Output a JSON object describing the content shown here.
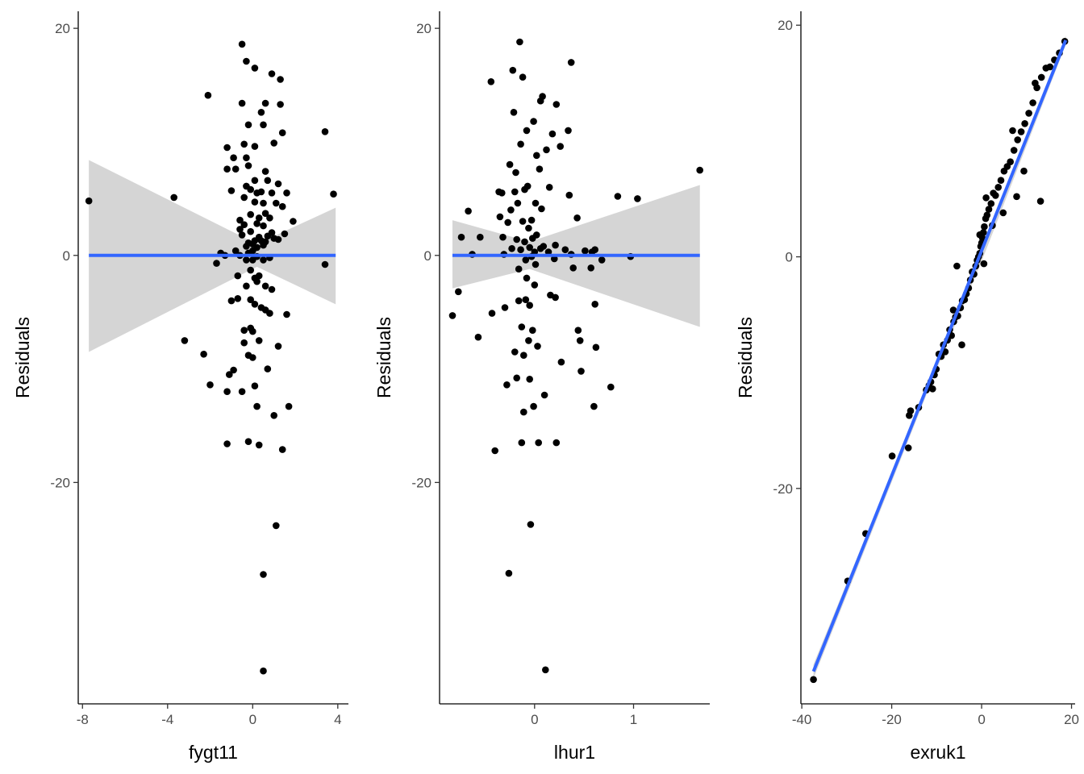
{
  "colors": {
    "point": "#000000",
    "fit_line": "#3366FF",
    "ci_band": "#D3D3D3"
  },
  "chart_data": [
    {
      "type": "scatter",
      "xlabel": "fygt11",
      "ylabel": "Residuals",
      "xlim": [
        -8.2,
        4.5
      ],
      "ylim": [
        -39.5,
        21.5
      ],
      "xticks": [
        -8,
        -4,
        0,
        4
      ],
      "xtick_labels": [
        "-8",
        "-4",
        "0",
        "4"
      ],
      "yticks": [
        -20,
        0,
        20
      ],
      "ytick_labels": [
        "-20",
        "0",
        "20"
      ],
      "grid": false,
      "fit": {
        "x": [
          -7.7,
          3.9
        ],
        "y": [
          0,
          0
        ]
      },
      "ci": {
        "x": [
          -7.7,
          0.2,
          3.9
        ],
        "upper": [
          8.4,
          1.0,
          4.2
        ],
        "lower": [
          -8.5,
          -1.0,
          -4.3
        ]
      },
      "points": [
        [
          -7.7,
          4.8
        ],
        [
          -3.7,
          5.1
        ],
        [
          -3.2,
          -7.5
        ],
        [
          -2.3,
          -8.7
        ],
        [
          -2.1,
          14.1
        ],
        [
          -2.0,
          -11.4
        ],
        [
          -1.7,
          -0.7
        ],
        [
          -1.5,
          0.2
        ],
        [
          -1.3,
          0.0
        ],
        [
          -1.2,
          9.5
        ],
        [
          -1.2,
          7.6
        ],
        [
          -1.2,
          -12.0
        ],
        [
          -1.2,
          -16.6
        ],
        [
          -1.1,
          -10.5
        ],
        [
          -1.0,
          -4.0
        ],
        [
          -1.0,
          5.7
        ],
        [
          -0.9,
          8.6
        ],
        [
          -0.9,
          -10.1
        ],
        [
          -0.8,
          0.4
        ],
        [
          -0.8,
          7.6
        ],
        [
          -0.7,
          -3.8
        ],
        [
          -0.7,
          -1.8
        ],
        [
          -0.6,
          3.1
        ],
        [
          -0.6,
          2.3
        ],
        [
          -0.6,
          0.0
        ],
        [
          -0.5,
          1.8
        ],
        [
          -0.5,
          -12.0
        ],
        [
          -0.5,
          18.6
        ],
        [
          -0.5,
          13.4
        ],
        [
          -0.4,
          9.8
        ],
        [
          -0.4,
          5.1
        ],
        [
          -0.4,
          2.7
        ],
        [
          -0.4,
          -6.6
        ],
        [
          -0.4,
          -7.7
        ],
        [
          -0.3,
          17.1
        ],
        [
          -0.3,
          8.6
        ],
        [
          -0.3,
          6.1
        ],
        [
          -0.3,
          0.8
        ],
        [
          -0.3,
          -0.4
        ],
        [
          -0.3,
          -2.7
        ],
        [
          -0.2,
          11.5
        ],
        [
          -0.2,
          7.9
        ],
        [
          -0.2,
          1.1
        ],
        [
          -0.2,
          0.2
        ],
        [
          -0.2,
          -8.8
        ],
        [
          -0.2,
          -16.4
        ],
        [
          -0.1,
          5.8
        ],
        [
          -0.1,
          3.6
        ],
        [
          -0.1,
          2.1
        ],
        [
          -0.1,
          -1.3
        ],
        [
          -0.1,
          -3.9
        ],
        [
          -0.1,
          -6.4
        ],
        [
          0.0,
          1.0
        ],
        [
          0.0,
          0.4
        ],
        [
          0.0,
          -0.4
        ],
        [
          0.0,
          -6.7
        ],
        [
          0.0,
          -9.0
        ],
        [
          0.1,
          16.5
        ],
        [
          0.1,
          9.6
        ],
        [
          0.1,
          6.6
        ],
        [
          0.1,
          4.7
        ],
        [
          0.1,
          1.3
        ],
        [
          0.1,
          -2.0
        ],
        [
          0.1,
          -4.3
        ],
        [
          0.1,
          -11.5
        ],
        [
          0.2,
          5.5
        ],
        [
          0.2,
          2.8
        ],
        [
          0.2,
          0.7
        ],
        [
          0.2,
          -0.1
        ],
        [
          0.2,
          -2.3
        ],
        [
          0.2,
          -13.3
        ],
        [
          0.3,
          3.3
        ],
        [
          0.3,
          1.6
        ],
        [
          0.3,
          -1.8
        ],
        [
          0.3,
          -7.5
        ],
        [
          0.3,
          -16.7
        ],
        [
          0.4,
          12.6
        ],
        [
          0.4,
          5.6
        ],
        [
          0.4,
          1.3
        ],
        [
          0.4,
          -4.6
        ],
        [
          0.5,
          11.5
        ],
        [
          0.5,
          4.6
        ],
        [
          0.5,
          2.6
        ],
        [
          0.5,
          0.9
        ],
        [
          0.5,
          -0.4
        ],
        [
          0.5,
          -28.1
        ],
        [
          0.5,
          -36.6
        ],
        [
          0.6,
          13.4
        ],
        [
          0.6,
          7.4
        ],
        [
          0.6,
          3.7
        ],
        [
          0.6,
          1.2
        ],
        [
          0.6,
          -2.7
        ],
        [
          0.6,
          -4.8
        ],
        [
          0.7,
          6.6
        ],
        [
          0.7,
          1.7
        ],
        [
          0.7,
          -10.0
        ],
        [
          0.8,
          3.3
        ],
        [
          0.8,
          -0.2
        ],
        [
          0.8,
          -5.1
        ],
        [
          0.9,
          16.0
        ],
        [
          0.9,
          5.5
        ],
        [
          0.9,
          2.0
        ],
        [
          0.9,
          -3.0
        ],
        [
          1.0,
          9.9
        ],
        [
          1.0,
          1.5
        ],
        [
          1.0,
          -14.1
        ],
        [
          1.1,
          4.6
        ],
        [
          1.1,
          -23.8
        ],
        [
          1.2,
          6.3
        ],
        [
          1.2,
          1.4
        ],
        [
          1.2,
          -8.0
        ],
        [
          1.3,
          15.5
        ],
        [
          1.3,
          13.3
        ],
        [
          1.4,
          10.8
        ],
        [
          1.4,
          4.3
        ],
        [
          1.4,
          -17.1
        ],
        [
          1.5,
          1.9
        ],
        [
          1.6,
          -5.2
        ],
        [
          1.6,
          5.5
        ],
        [
          1.7,
          -13.3
        ],
        [
          1.9,
          3.0
        ],
        [
          3.4,
          10.9
        ],
        [
          3.4,
          -0.8
        ],
        [
          3.8,
          5.4
        ]
      ]
    },
    {
      "type": "scatter",
      "xlabel": "lhur1",
      "ylabel": "Residuals",
      "xlim": [
        -0.96,
        1.77
      ],
      "ylim": [
        -39.5,
        21.5
      ],
      "xticks": [
        0,
        1
      ],
      "xtick_labels": [
        "0",
        "1"
      ],
      "yticks": [
        -20,
        0,
        20
      ],
      "ytick_labels": [
        "-20",
        "0",
        "20"
      ],
      "grid": false,
      "fit": {
        "x": [
          -0.83,
          1.67
        ],
        "y": [
          0,
          0
        ]
      },
      "ci": {
        "x": [
          -0.83,
          -0.05,
          1.67
        ],
        "upper": [
          3.1,
          1.2,
          6.2
        ],
        "lower": [
          -2.9,
          -1.2,
          -6.3
        ]
      },
      "points": [
        [
          -0.83,
          -5.3
        ],
        [
          -0.77,
          -3.2
        ],
        [
          -0.74,
          1.6
        ],
        [
          -0.67,
          3.9
        ],
        [
          -0.63,
          0.1
        ],
        [
          -0.57,
          -7.2
        ],
        [
          -0.55,
          1.6
        ],
        [
          -0.44,
          15.3
        ],
        [
          -0.43,
          -5.1
        ],
        [
          -0.4,
          -17.2
        ],
        [
          -0.36,
          5.6
        ],
        [
          -0.35,
          3.4
        ],
        [
          -0.33,
          5.5
        ],
        [
          -0.32,
          1.6
        ],
        [
          -0.31,
          0.1
        ],
        [
          -0.3,
          -4.6
        ],
        [
          -0.28,
          -11.4
        ],
        [
          -0.27,
          2.9
        ],
        [
          -0.26,
          -28.0
        ],
        [
          -0.25,
          8.0
        ],
        [
          -0.24,
          4.0
        ],
        [
          -0.23,
          0.6
        ],
        [
          -0.22,
          16.3
        ],
        [
          -0.21,
          12.6
        ],
        [
          -0.2,
          5.6
        ],
        [
          -0.2,
          -8.5
        ],
        [
          -0.19,
          7.3
        ],
        [
          -0.18,
          1.4
        ],
        [
          -0.18,
          -10.8
        ],
        [
          -0.17,
          4.6
        ],
        [
          -0.16,
          -1.2
        ],
        [
          -0.16,
          -4.0
        ],
        [
          -0.15,
          18.8
        ],
        [
          -0.14,
          9.8
        ],
        [
          -0.14,
          0.5
        ],
        [
          -0.13,
          -6.3
        ],
        [
          -0.13,
          -16.5
        ],
        [
          -0.12,
          15.7
        ],
        [
          -0.12,
          3.0
        ],
        [
          -0.11,
          -8.8
        ],
        [
          -0.11,
          -13.8
        ],
        [
          -0.1,
          5.8
        ],
        [
          -0.1,
          1.2
        ],
        [
          -0.09,
          -0.4
        ],
        [
          -0.09,
          -3.9
        ],
        [
          -0.08,
          11.0
        ],
        [
          -0.08,
          -2.0
        ],
        [
          -0.07,
          6.1
        ],
        [
          -0.06,
          2.4
        ],
        [
          -0.06,
          -7.5
        ],
        [
          -0.05,
          0.7
        ],
        [
          -0.05,
          -4.4
        ],
        [
          -0.05,
          -10.9
        ],
        [
          -0.04,
          -23.7
        ],
        [
          -0.03,
          3.1
        ],
        [
          -0.03,
          -0.1
        ],
        [
          -0.02,
          1.5
        ],
        [
          -0.02,
          -6.6
        ],
        [
          -0.01,
          11.8
        ],
        [
          -0.01,
          -13.3
        ],
        [
          0.0,
          0.3
        ],
        [
          0.0,
          -2.6
        ],
        [
          0.01,
          4.6
        ],
        [
          0.01,
          -0.8
        ],
        [
          0.02,
          8.8
        ],
        [
          0.02,
          1.8
        ],
        [
          0.03,
          -8.0
        ],
        [
          0.04,
          -16.5
        ],
        [
          0.05,
          7.6
        ],
        [
          0.06,
          13.6
        ],
        [
          0.06,
          0.6
        ],
        [
          0.07,
          4.1
        ],
        [
          0.08,
          14.0
        ],
        [
          0.09,
          0.8
        ],
        [
          0.1,
          -12.3
        ],
        [
          0.11,
          -36.5
        ],
        [
          0.12,
          9.3
        ],
        [
          0.14,
          0.3
        ],
        [
          0.15,
          6.0
        ],
        [
          0.16,
          -3.5
        ],
        [
          0.18,
          10.7
        ],
        [
          0.2,
          -0.3
        ],
        [
          0.21,
          0.9
        ],
        [
          0.21,
          -3.7
        ],
        [
          0.22,
          13.3
        ],
        [
          0.22,
          -16.5
        ],
        [
          0.26,
          9.6
        ],
        [
          0.27,
          -9.4
        ],
        [
          0.31,
          0.5
        ],
        [
          0.34,
          11.0
        ],
        [
          0.35,
          5.3
        ],
        [
          0.37,
          17.0
        ],
        [
          0.37,
          0.1
        ],
        [
          0.39,
          -1.1
        ],
        [
          0.43,
          3.3
        ],
        [
          0.44,
          -6.6
        ],
        [
          0.46,
          -7.5
        ],
        [
          0.47,
          -10.2
        ],
        [
          0.51,
          0.4
        ],
        [
          0.57,
          -1.1
        ],
        [
          0.58,
          0.3
        ],
        [
          0.6,
          -13.3
        ],
        [
          0.61,
          -4.3
        ],
        [
          0.61,
          0.5
        ],
        [
          0.62,
          -8.1
        ],
        [
          0.68,
          -0.4
        ],
        [
          0.77,
          -11.6
        ],
        [
          0.84,
          5.2
        ],
        [
          0.97,
          -0.1
        ],
        [
          1.04,
          5.0
        ],
        [
          1.67,
          7.5
        ]
      ]
    },
    {
      "type": "scatter",
      "xlabel": "exruk1",
      "ylabel": "Residuals",
      "xlim": [
        -40.2,
        20.8
      ],
      "ylim": [
        -38.6,
        21.2
      ],
      "xticks": [
        -40,
        -20,
        0,
        20
      ],
      "xtick_labels": [
        "-40",
        "-20",
        "0",
        "20"
      ],
      "yticks": [
        -20,
        0,
        20
      ],
      "ytick_labels": [
        "-20",
        "0",
        "20"
      ],
      "grid": false,
      "fit": {
        "x": [
          -37.4,
          18.7
        ],
        "y": [
          -35.8,
          18.7
        ]
      },
      "ci": {
        "x": [
          -37.4,
          -10,
          0,
          18.7
        ],
        "upper": [
          -35.2,
          -9.1,
          0.4,
          19.1
        ],
        "lower": [
          -36.4,
          -9.7,
          -0.4,
          18.3
        ]
      },
      "points": [
        [
          -37.4,
          -36.5
        ],
        [
          -29.8,
          -28.0
        ],
        [
          -25.8,
          -23.9
        ],
        [
          -19.9,
          -17.2
        ],
        [
          -16.3,
          -16.5
        ],
        [
          -16.1,
          -13.7
        ],
        [
          -15.8,
          -13.3
        ],
        [
          -14.0,
          -13.0
        ],
        [
          -12.3,
          -11.5
        ],
        [
          -11.7,
          -11.1
        ],
        [
          -11.3,
          -10.8
        ],
        [
          -10.9,
          -11.4
        ],
        [
          -10.5,
          -10.2
        ],
        [
          -10.1,
          -9.7
        ],
        [
          -9.5,
          -8.4
        ],
        [
          -9.0,
          -8.6
        ],
        [
          -8.5,
          -7.6
        ],
        [
          -8.1,
          -8.2
        ],
        [
          -7.6,
          -7.2
        ],
        [
          -7.1,
          -6.3
        ],
        [
          -6.7,
          -6.8
        ],
        [
          -6.2,
          -5.6
        ],
        [
          -5.8,
          -5.2
        ],
        [
          -5.3,
          -5.1
        ],
        [
          -4.7,
          -4.4
        ],
        [
          -4.3,
          -3.8
        ],
        [
          -3.8,
          -3.7
        ],
        [
          -3.4,
          -3.2
        ],
        [
          -2.9,
          -2.7
        ],
        [
          -2.5,
          -2.0
        ],
        [
          -2.1,
          -1.3
        ],
        [
          -1.7,
          -1.5
        ],
        [
          -1.3,
          -0.8
        ],
        [
          -1.0,
          -0.3
        ],
        [
          -0.7,
          0.0
        ],
        [
          -0.4,
          0.3
        ],
        [
          -0.2,
          0.9
        ],
        [
          0.0,
          1.2
        ],
        [
          0.2,
          1.6
        ],
        [
          0.4,
          2.1
        ],
        [
          0.6,
          2.6
        ],
        [
          0.9,
          3.3
        ],
        [
          1.2,
          3.6
        ],
        [
          1.6,
          4.1
        ],
        [
          2.1,
          4.6
        ],
        [
          2.6,
          5.5
        ],
        [
          3.1,
          5.3
        ],
        [
          3.7,
          6.0
        ],
        [
          4.3,
          6.6
        ],
        [
          5.0,
          7.4
        ],
        [
          5.7,
          7.8
        ],
        [
          6.4,
          8.2
        ],
        [
          7.2,
          9.2
        ],
        [
          8.0,
          10.1
        ],
        [
          8.8,
          10.8
        ],
        [
          9.6,
          11.5
        ],
        [
          10.5,
          12.4
        ],
        [
          11.4,
          13.3
        ],
        [
          12.3,
          14.6
        ],
        [
          13.3,
          15.5
        ],
        [
          14.3,
          16.3
        ],
        [
          15.2,
          16.4
        ],
        [
          16.2,
          17.0
        ],
        [
          17.3,
          17.6
        ],
        [
          18.5,
          18.6
        ],
        [
          -6.3,
          -4.6
        ],
        [
          -4.4,
          -7.6
        ],
        [
          -5.5,
          -0.8
        ],
        [
          0.5,
          -0.6
        ],
        [
          1.0,
          5.1
        ],
        [
          4.8,
          3.8
        ],
        [
          6.9,
          10.9
        ],
        [
          9.4,
          7.4
        ],
        [
          13.1,
          4.8
        ],
        [
          7.8,
          5.2
        ],
        [
          2.4,
          2.7
        ],
        [
          -0.4,
          1.9
        ],
        [
          11.9,
          15.0
        ]
      ]
    }
  ]
}
